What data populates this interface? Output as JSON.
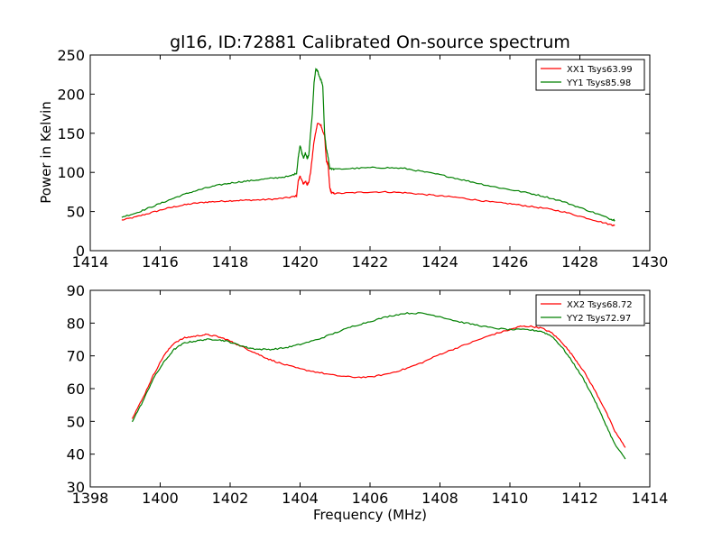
{
  "chart_data": [
    {
      "type": "line",
      "title": "gl16, ID:72881 Calibrated On-source spectrum",
      "xlabel": "",
      "ylabel": "Power in Kelvin",
      "xlim": [
        1414,
        1430
      ],
      "ylim": [
        0,
        250
      ],
      "xticks": [
        1414,
        1416,
        1418,
        1420,
        1422,
        1424,
        1426,
        1428,
        1430
      ],
      "yticks": [
        0,
        50,
        100,
        150,
        200,
        250
      ],
      "grid": false,
      "legend_position": "top-right",
      "series": [
        {
          "name": "XX1 Tsys63.99",
          "color": "#ff0000",
          "points": [
            [
              1414.9,
              39
            ],
            [
              1415.3,
              43
            ],
            [
              1415.7,
              48
            ],
            [
              1416.1,
              53
            ],
            [
              1416.5,
              57
            ],
            [
              1416.9,
              60
            ],
            [
              1417.3,
              62
            ],
            [
              1417.7,
              63
            ],
            [
              1418.1,
              64
            ],
            [
              1418.5,
              64.5
            ],
            [
              1418.9,
              65
            ],
            [
              1419.3,
              66
            ],
            [
              1419.7,
              68
            ],
            [
              1419.9,
              70
            ],
            [
              1419.95,
              90
            ],
            [
              1420.0,
              95
            ],
            [
              1420.05,
              90
            ],
            [
              1420.1,
              85
            ],
            [
              1420.15,
              89
            ],
            [
              1420.2,
              84
            ],
            [
              1420.25,
              88
            ],
            [
              1420.3,
              100
            ],
            [
              1420.4,
              140
            ],
            [
              1420.5,
              163
            ],
            [
              1420.6,
              160
            ],
            [
              1420.65,
              152
            ],
            [
              1420.7,
              148
            ],
            [
              1420.75,
              115
            ],
            [
              1420.8,
              110
            ],
            [
              1420.85,
              80
            ],
            [
              1420.9,
              74
            ],
            [
              1421.0,
              73
            ],
            [
              1421.5,
              74
            ],
            [
              1422.0,
              75
            ],
            [
              1422.5,
              75
            ],
            [
              1423.0,
              74
            ],
            [
              1423.5,
              72
            ],
            [
              1424.0,
              70
            ],
            [
              1424.5,
              68
            ],
            [
              1425.0,
              65
            ],
            [
              1425.5,
              62
            ],
            [
              1426.0,
              60
            ],
            [
              1426.5,
              57
            ],
            [
              1427.0,
              54
            ],
            [
              1427.5,
              50
            ],
            [
              1428.0,
              44
            ],
            [
              1428.5,
              38
            ],
            [
              1428.9,
              33
            ],
            [
              1429.0,
              32
            ]
          ]
        },
        {
          "name": "YY1 Tsys85.98",
          "color": "#008000",
          "points": [
            [
              1414.9,
              43
            ],
            [
              1415.3,
              48
            ],
            [
              1415.7,
              55
            ],
            [
              1416.1,
              62
            ],
            [
              1416.5,
              69
            ],
            [
              1416.9,
              75
            ],
            [
              1417.3,
              80
            ],
            [
              1417.7,
              84
            ],
            [
              1418.1,
              87
            ],
            [
              1418.5,
              89
            ],
            [
              1418.9,
              91
            ],
            [
              1419.3,
              93
            ],
            [
              1419.7,
              95
            ],
            [
              1419.9,
              99
            ],
            [
              1419.95,
              120
            ],
            [
              1420.0,
              135
            ],
            [
              1420.05,
              125
            ],
            [
              1420.1,
              118
            ],
            [
              1420.15,
              125
            ],
            [
              1420.2,
              118
            ],
            [
              1420.25,
              122
            ],
            [
              1420.3,
              150
            ],
            [
              1420.35,
              175
            ],
            [
              1420.4,
              215
            ],
            [
              1420.45,
              232
            ],
            [
              1420.5,
              230
            ],
            [
              1420.55,
              222
            ],
            [
              1420.6,
              218
            ],
            [
              1420.65,
              210
            ],
            [
              1420.7,
              150
            ],
            [
              1420.75,
              130
            ],
            [
              1420.8,
              120
            ],
            [
              1420.85,
              105
            ],
            [
              1421.0,
              104
            ],
            [
              1421.5,
              105
            ],
            [
              1422.0,
              106
            ],
            [
              1422.5,
              106
            ],
            [
              1423.0,
              105
            ],
            [
              1423.5,
              101
            ],
            [
              1424.0,
              97
            ],
            [
              1424.5,
              92
            ],
            [
              1425.0,
              87
            ],
            [
              1425.5,
              82
            ],
            [
              1426.0,
              78
            ],
            [
              1426.5,
              74
            ],
            [
              1427.0,
              69
            ],
            [
              1427.5,
              63
            ],
            [
              1428.0,
              55
            ],
            [
              1428.5,
              47
            ],
            [
              1428.9,
              40
            ],
            [
              1429.0,
              39
            ]
          ]
        }
      ]
    },
    {
      "type": "line",
      "title": "",
      "xlabel": "Frequency (MHz)",
      "ylabel": "",
      "xlim": [
        1398,
        1414
      ],
      "ylim": [
        30,
        90
      ],
      "xticks": [
        1398,
        1400,
        1402,
        1404,
        1406,
        1408,
        1410,
        1412,
        1414
      ],
      "yticks": [
        30,
        40,
        50,
        60,
        70,
        80,
        90
      ],
      "grid": false,
      "legend_position": "top-right",
      "series": [
        {
          "name": "XX2 Tsys68.72",
          "color": "#ff0000",
          "points": [
            [
              1399.2,
              51
            ],
            [
              1399.5,
              57
            ],
            [
              1399.8,
              64
            ],
            [
              1400.1,
              70
            ],
            [
              1400.4,
              74
            ],
            [
              1400.7,
              75.5
            ],
            [
              1401.0,
              76
            ],
            [
              1401.3,
              76.5
            ],
            [
              1401.6,
              76
            ],
            [
              1401.9,
              75
            ],
            [
              1402.2,
              73.5
            ],
            [
              1402.5,
              72
            ],
            [
              1402.8,
              70.5
            ],
            [
              1403.1,
              69
            ],
            [
              1403.5,
              67.5
            ],
            [
              1404.0,
              66
            ],
            [
              1404.5,
              65
            ],
            [
              1405.0,
              64
            ],
            [
              1405.5,
              63.5
            ],
            [
              1406.0,
              63.5
            ],
            [
              1406.5,
              64.5
            ],
            [
              1407.0,
              66
            ],
            [
              1407.5,
              68
            ],
            [
              1408.0,
              70.5
            ],
            [
              1408.5,
              72.5
            ],
            [
              1409.0,
              74.5
            ],
            [
              1409.5,
              76.5
            ],
            [
              1410.0,
              78
            ],
            [
              1410.3,
              79
            ],
            [
              1410.6,
              79
            ],
            [
              1410.9,
              78.5
            ],
            [
              1411.2,
              77
            ],
            [
              1411.5,
              74
            ],
            [
              1411.8,
              70
            ],
            [
              1412.1,
              65.5
            ],
            [
              1412.4,
              60
            ],
            [
              1412.7,
              54
            ],
            [
              1413.0,
              47
            ],
            [
              1413.3,
              42
            ]
          ]
        },
        {
          "name": "YY2 Tsys72.97",
          "color": "#008000",
          "points": [
            [
              1399.2,
              50
            ],
            [
              1399.5,
              56
            ],
            [
              1399.8,
              63
            ],
            [
              1400.1,
              68
            ],
            [
              1400.4,
              72
            ],
            [
              1400.7,
              74
            ],
            [
              1401.0,
              74.5
            ],
            [
              1401.3,
              75
            ],
            [
              1401.6,
              75
            ],
            [
              1401.9,
              74.5
            ],
            [
              1402.2,
              73.5
            ],
            [
              1402.5,
              72.5
            ],
            [
              1402.8,
              72
            ],
            [
              1403.2,
              72
            ],
            [
              1403.6,
              72.5
            ],
            [
              1404.0,
              73.5
            ],
            [
              1404.5,
              75
            ],
            [
              1405.0,
              77
            ],
            [
              1405.5,
              79
            ],
            [
              1406.0,
              80.5
            ],
            [
              1406.5,
              82
            ],
            [
              1407.0,
              83
            ],
            [
              1407.5,
              83
            ],
            [
              1408.0,
              82
            ],
            [
              1408.5,
              80.5
            ],
            [
              1409.0,
              79.5
            ],
            [
              1409.5,
              78.5
            ],
            [
              1410.0,
              78
            ],
            [
              1410.5,
              78
            ],
            [
              1410.9,
              77.5
            ],
            [
              1411.2,
              76
            ],
            [
              1411.5,
              72.5
            ],
            [
              1411.8,
              68
            ],
            [
              1412.1,
              63
            ],
            [
              1412.4,
              57
            ],
            [
              1412.7,
              50
            ],
            [
              1413.0,
              43
            ],
            [
              1413.3,
              38.5
            ]
          ]
        }
      ]
    }
  ]
}
